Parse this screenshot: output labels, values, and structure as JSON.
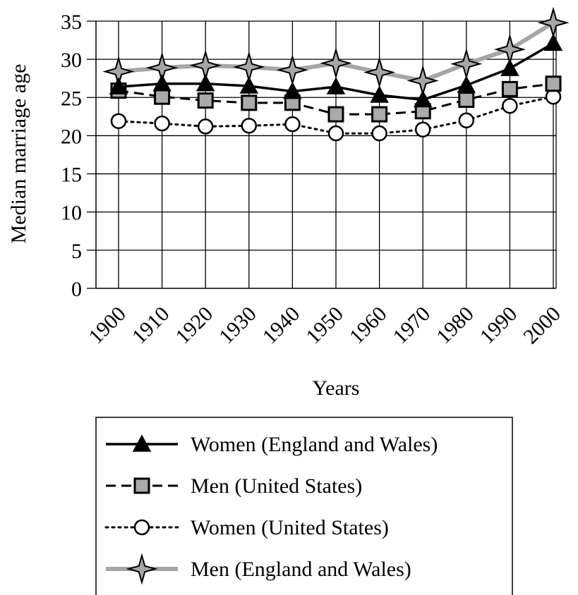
{
  "chart_data": {
    "type": "line",
    "title": "",
    "xlabel": "Years",
    "ylabel": "Median marriage age",
    "categories": [
      "1900",
      "1910",
      "1920",
      "1930",
      "1940",
      "1950",
      "1960",
      "1970",
      "1980",
      "1990",
      "2000"
    ],
    "ylim": [
      0,
      35
    ],
    "yticks": [
      0,
      5,
      10,
      15,
      20,
      25,
      30,
      35
    ],
    "grid": "horizontal",
    "legend_position": "bottom",
    "series": [
      {
        "name": "Women (England and Wales)",
        "marker": "triangle",
        "line": "solid",
        "color": "#000000",
        "marker_fill": "#000000",
        "values": [
          26.4,
          26.8,
          26.8,
          26.5,
          25.8,
          26.4,
          25.3,
          24.7,
          26.6,
          28.8,
          32.1
        ]
      },
      {
        "name": "Men (United States)",
        "marker": "square",
        "line": "dashed",
        "color": "#000000",
        "marker_fill": "#aaaaaa",
        "values": [
          25.9,
          25.1,
          24.6,
          24.3,
          24.3,
          22.8,
          22.8,
          23.2,
          24.7,
          26.1,
          26.8
        ]
      },
      {
        "name": "Women (United States)",
        "marker": "circle",
        "line": "dotted",
        "color": "#000000",
        "marker_fill": "#ffffff",
        "values": [
          21.9,
          21.6,
          21.2,
          21.3,
          21.5,
          20.3,
          20.3,
          20.8,
          22.0,
          23.9,
          25.1
        ]
      },
      {
        "name": "Men (England and Wales)",
        "marker": "star",
        "line": "solid",
        "color": "#a6a6a6",
        "marker_fill": "#a6a6a6",
        "values": [
          28.4,
          28.9,
          29.2,
          29.0,
          28.6,
          29.5,
          28.3,
          27.2,
          29.4,
          31.3,
          34.8
        ]
      }
    ]
  }
}
